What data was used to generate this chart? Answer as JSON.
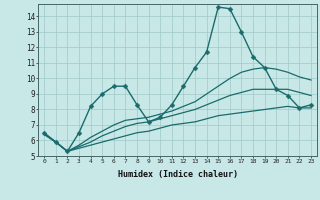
{
  "xlabel": "Humidex (Indice chaleur)",
  "bg_color": "#c8e8e8",
  "grid_color": "#a0c8c8",
  "line_color": "#1a6b6b",
  "xlim": [
    -0.5,
    23.5
  ],
  "ylim": [
    5,
    14.8
  ],
  "yticks": [
    5,
    6,
    7,
    8,
    9,
    10,
    11,
    12,
    13,
    14
  ],
  "xticks": [
    0,
    1,
    2,
    3,
    4,
    5,
    6,
    7,
    8,
    9,
    10,
    11,
    12,
    13,
    14,
    15,
    16,
    17,
    18,
    19,
    20,
    21,
    22,
    23
  ],
  "series": [
    {
      "x": [
        0,
        1,
        2,
        3,
        4,
        5,
        6,
        7,
        8,
        9,
        10,
        11,
        12,
        13,
        14,
        15,
        16,
        17,
        18,
        19,
        20,
        21,
        22,
        23
      ],
      "y": [
        6.5,
        5.9,
        5.3,
        6.5,
        8.2,
        9.0,
        9.5,
        9.5,
        8.3,
        7.2,
        7.5,
        8.3,
        9.5,
        10.7,
        11.7,
        14.6,
        14.5,
        13.0,
        11.4,
        10.7,
        9.3,
        8.9,
        8.1,
        8.3
      ],
      "has_marker": true,
      "markersize": 2.5,
      "linewidth": 1.0
    },
    {
      "x": [
        0,
        1,
        2,
        3,
        4,
        5,
        6,
        7,
        8,
        9,
        10,
        11,
        12,
        13,
        14,
        15,
        16,
        17,
        18,
        19,
        20,
        21,
        22,
        23
      ],
      "y": [
        6.4,
        5.9,
        5.3,
        5.5,
        5.7,
        5.9,
        6.1,
        6.3,
        6.5,
        6.6,
        6.8,
        7.0,
        7.1,
        7.2,
        7.4,
        7.6,
        7.7,
        7.8,
        7.9,
        8.0,
        8.1,
        8.2,
        8.1,
        8.1
      ],
      "has_marker": false,
      "linewidth": 0.9
    },
    {
      "x": [
        0,
        1,
        2,
        3,
        4,
        5,
        6,
        7,
        8,
        9,
        10,
        11,
        12,
        13,
        14,
        15,
        16,
        17,
        18,
        19,
        20,
        21,
        22,
        23
      ],
      "y": [
        6.4,
        5.9,
        5.3,
        5.6,
        5.9,
        6.3,
        6.6,
        6.9,
        7.1,
        7.2,
        7.4,
        7.6,
        7.8,
        8.0,
        8.3,
        8.6,
        8.9,
        9.1,
        9.3,
        9.3,
        9.3,
        9.3,
        9.1,
        8.9
      ],
      "has_marker": false,
      "linewidth": 0.9
    },
    {
      "x": [
        0,
        1,
        2,
        3,
        4,
        5,
        6,
        7,
        8,
        9,
        10,
        11,
        12,
        13,
        14,
        15,
        16,
        17,
        18,
        19,
        20,
        21,
        22,
        23
      ],
      "y": [
        6.4,
        5.9,
        5.3,
        5.7,
        6.2,
        6.6,
        7.0,
        7.3,
        7.4,
        7.5,
        7.7,
        7.9,
        8.2,
        8.5,
        9.0,
        9.5,
        10.0,
        10.4,
        10.6,
        10.7,
        10.6,
        10.4,
        10.1,
        9.9
      ],
      "has_marker": false,
      "linewidth": 0.9
    }
  ]
}
